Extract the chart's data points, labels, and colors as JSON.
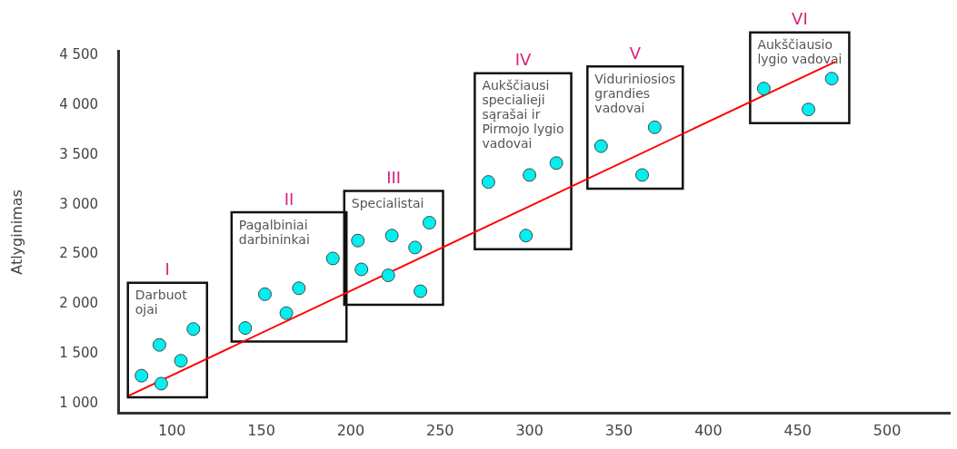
{
  "chart_data": {
    "type": "scatter",
    "ylabel": "Atlyginimas",
    "xlim": [
      70,
      535
    ],
    "ylim": [
      900,
      4550
    ],
    "xticks": [
      100,
      150,
      200,
      250,
      300,
      350,
      400,
      450,
      500
    ],
    "yticks": [
      {
        "value": 1000,
        "label": "1 000"
      },
      {
        "value": 1500,
        "label": "1 500"
      },
      {
        "value": 2000,
        "label": "2 000"
      },
      {
        "value": 2500,
        "label": "2 500"
      },
      {
        "value": 3000,
        "label": "3 000"
      },
      {
        "value": 3500,
        "label": "3 500"
      },
      {
        "value": 4000,
        "label": "4 000"
      },
      {
        "value": 4500,
        "label": "4 500"
      }
    ],
    "marker": "circle",
    "series": [
      {
        "color": "#00f0f0",
        "x": [
          83,
          94,
          105,
          93,
          112
        ],
        "values": [
          1280,
          1200,
          1430,
          1590,
          1750
        ]
      },
      {
        "color": "#00f0f0",
        "x": [
          141,
          152,
          164,
          171,
          190
        ],
        "values": [
          1760,
          2100,
          1910,
          2160,
          2460
        ]
      },
      {
        "color": "#00f0f0",
        "x": [
          204,
          206,
          223,
          221,
          236,
          239,
          244
        ],
        "values": [
          2640,
          2350,
          2690,
          2290,
          2570,
          2130,
          2820
        ]
      },
      {
        "color": "#00f0f0",
        "x": [
          277,
          300,
          315,
          298
        ],
        "values": [
          3230,
          3300,
          3420,
          2690
        ]
      },
      {
        "color": "#00f0f0",
        "x": [
          340,
          370,
          363
        ],
        "values": [
          3590,
          3780,
          3300
        ]
      },
      {
        "color": "#00f0f0",
        "x": [
          431,
          469,
          456
        ],
        "values": [
          4170,
          4270,
          3960
        ]
      },
      {
        "type": "line",
        "color": "#ff0000",
        "marker": "none",
        "x": [
          76,
          471
        ],
        "values": [
          1080,
          4440
        ]
      }
    ],
    "annotations": [
      "I",
      "II",
      "III",
      "IV",
      "V",
      "VI",
      "Darbuot ojai",
      "Pagalbiniai darbininkai",
      "Specialistai",
      "Aukščiausi specialieji sąrašai ir Pirmojo lygio vadovai",
      "Viduriniosios grandies vadovai",
      "Aukščiausio lygio vadovai"
    ]
  }
}
